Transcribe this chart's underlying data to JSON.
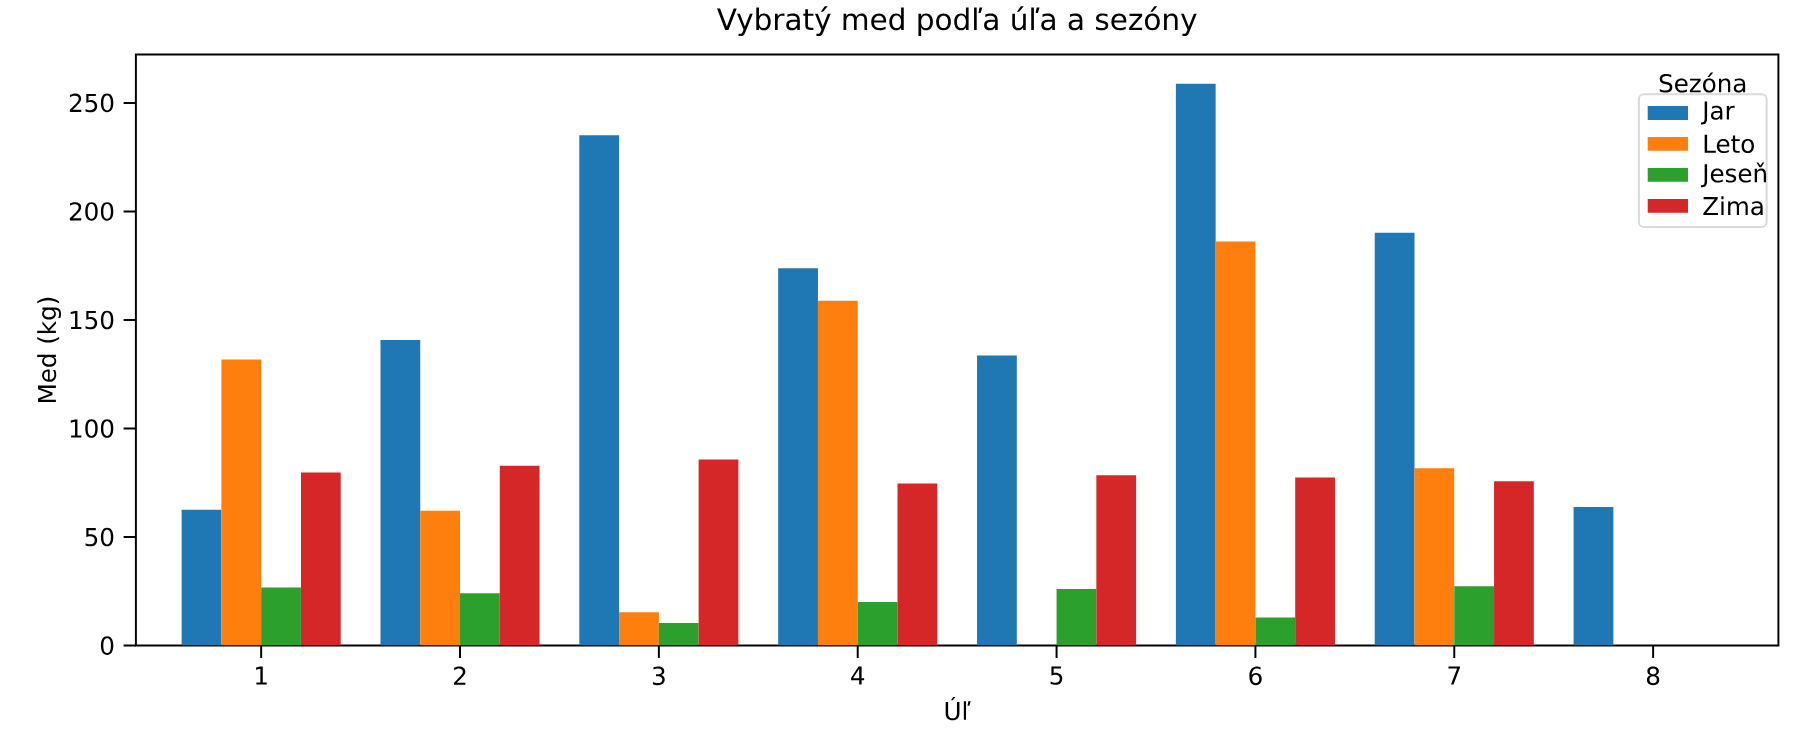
{
  "chart_data": {
    "type": "bar",
    "title": "Vybratý med podľa úľa a sezóny",
    "xlabel": "Úľ",
    "ylabel": "Med (kg)",
    "legend_title": "Sezóna",
    "categories": [
      "1",
      "2",
      "3",
      "4",
      "5",
      "6",
      "7",
      "8"
    ],
    "series": [
      {
        "name": "Jar",
        "color": "#1f77b4",
        "values": [
          62.6,
          140.8,
          235.1,
          173.8,
          133.6,
          258.9,
          190.2,
          63.8
        ]
      },
      {
        "name": "Leto",
        "color": "#ff7f0e",
        "values": [
          131.8,
          62.1,
          15.4,
          158.9,
          null,
          186.2,
          81.7,
          null
        ]
      },
      {
        "name": "Jeseň",
        "color": "#2ca02c",
        "values": [
          26.8,
          24.1,
          10.4,
          20.1,
          26.1,
          12.9,
          27.3,
          null
        ]
      },
      {
        "name": "Zima",
        "color": "#d62728",
        "values": [
          79.7,
          82.9,
          85.7,
          74.7,
          78.5,
          77.5,
          75.7,
          null
        ]
      }
    ],
    "ylim": [
      0,
      272.3
    ],
    "yticks": [
      0,
      50,
      100,
      150,
      200,
      250
    ],
    "legend": "top right"
  }
}
